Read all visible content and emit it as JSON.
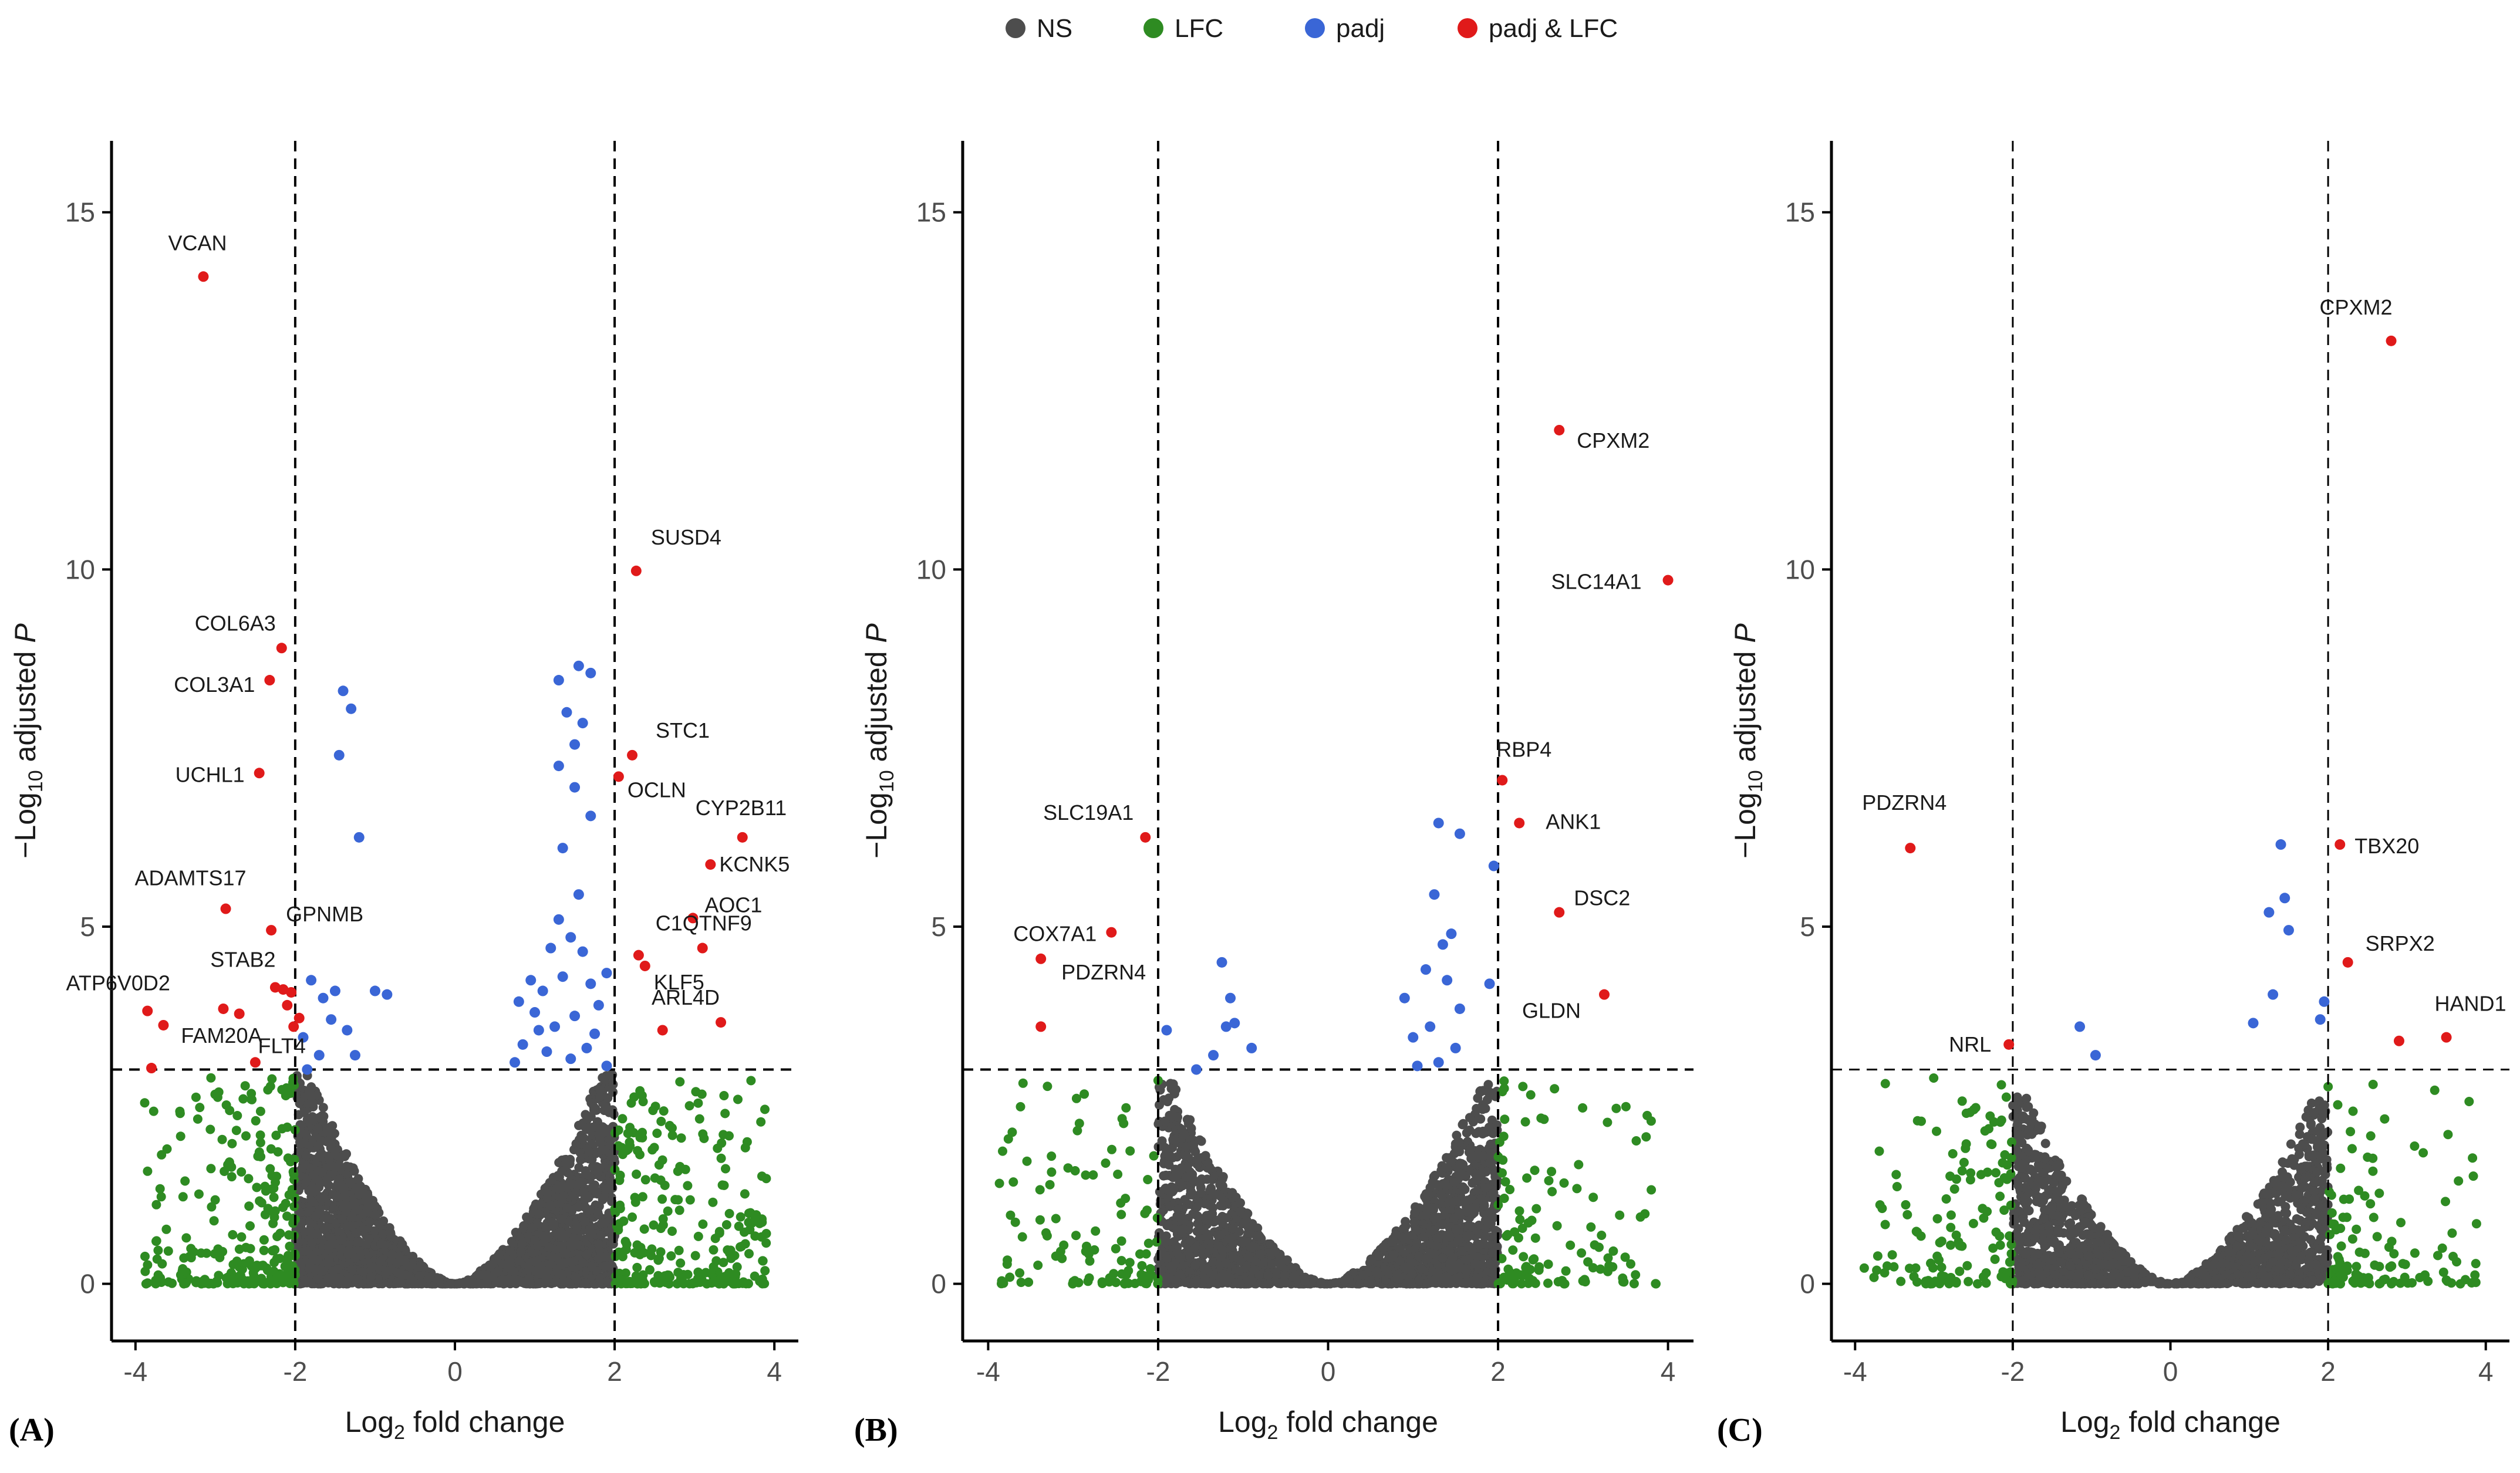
{
  "legend": {
    "items": [
      {
        "label": "NS",
        "color": "#4d4d4d"
      },
      {
        "label": "LFC",
        "color": "#2e8b22"
      },
      {
        "label": "padj",
        "color": "#3a66d6"
      },
      {
        "label": "padj & LFC",
        "color": "#e01a1a"
      }
    ]
  },
  "chart_data": [
    {
      "type": "scatter",
      "panel_label": "(A)",
      "xlabel_base": "Log",
      "xlabel_sub": "2",
      "xlabel_rest": " fold change",
      "ylabel_prefix": "−Log",
      "ylabel_sub": "10",
      "ylabel_mid": " adjusted ",
      "ylabel_p": "P",
      "xlim": [
        -4.3,
        4.3
      ],
      "ylim": [
        -0.8,
        16
      ],
      "xticks": [
        -4,
        -2,
        0,
        2,
        4
      ],
      "yticks": [
        0,
        5,
        10,
        15
      ],
      "fc_cutoff": 2,
      "p_cutoff": 3,
      "labeled_points": [
        {
          "gene": "VCAN",
          "x": -3.15,
          "y": 14.1
        },
        {
          "gene": "SUSD4",
          "x": 2.27,
          "y": 9.98
        },
        {
          "gene": "COL6A3",
          "x": -2.17,
          "y": 8.9
        },
        {
          "gene": "COL3A1",
          "x": -2.32,
          "y": 8.45
        },
        {
          "gene": "UCHL1",
          "x": -2.45,
          "y": 7.15
        },
        {
          "gene": "STC1",
          "x": 2.22,
          "y": 7.4
        },
        {
          "gene": "OCLN",
          "x": 2.05,
          "y": 7.1
        },
        {
          "gene": "CYP2B11",
          "x": 3.6,
          "y": 6.25
        },
        {
          "gene": "KCNK5",
          "x": 3.2,
          "y": 5.87
        },
        {
          "gene": "ADAMTS17",
          "x": -2.87,
          "y": 5.25
        },
        {
          "gene": "GPNMB",
          "x": -2.3,
          "y": 4.95
        },
        {
          "gene": "AOC1",
          "x": 2.98,
          "y": 5.12
        },
        {
          "gene": "C1QTNF9",
          "x": 3.1,
          "y": 4.7
        },
        {
          "gene": "KLF5",
          "x": 2.38,
          "y": 4.45
        },
        {
          "gene": "STAB2",
          "x": -2.25,
          "y": 4.15
        },
        {
          "gene": "ATP6V0D2",
          "x": -3.85,
          "y": 3.82
        },
        {
          "gene": "FAM20A",
          "x": -3.65,
          "y": 3.62
        },
        {
          "gene": "ARL4D",
          "x": 3.33,
          "y": 3.66
        },
        {
          "gene": "FLT4",
          "x": -2.02,
          "y": 3.6
        }
      ],
      "other_red": [
        {
          "x": -2.9,
          "y": 3.85
        },
        {
          "x": -2.7,
          "y": 3.78
        },
        {
          "x": -2.15,
          "y": 4.12
        },
        {
          "x": -2.05,
          "y": 4.08
        },
        {
          "x": -1.95,
          "y": 3.72
        },
        {
          "x": -2.5,
          "y": 3.1
        },
        {
          "x": -3.8,
          "y": 3.02
        },
        {
          "x": 2.3,
          "y": 4.6
        },
        {
          "x": 2.6,
          "y": 3.55
        },
        {
          "x": -2.1,
          "y": 3.9
        }
      ],
      "blue_points": [
        {
          "x": -1.4,
          "y": 8.3
        },
        {
          "x": -1.3,
          "y": 8.05
        },
        {
          "x": -1.45,
          "y": 7.4
        },
        {
          "x": -1.2,
          "y": 6.25
        },
        {
          "x": -1.0,
          "y": 4.1
        },
        {
          "x": -0.85,
          "y": 4.05
        },
        {
          "x": -1.5,
          "y": 4.1
        },
        {
          "x": -1.65,
          "y": 4.0
        },
        {
          "x": -1.8,
          "y": 4.25
        },
        {
          "x": -1.55,
          "y": 3.7
        },
        {
          "x": -1.35,
          "y": 3.55
        },
        {
          "x": -1.7,
          "y": 3.2
        },
        {
          "x": -1.9,
          "y": 3.45
        },
        {
          "x": -1.25,
          "y": 3.2
        },
        {
          "x": -1.85,
          "y": 3.0
        },
        {
          "x": 1.3,
          "y": 8.45
        },
        {
          "x": 1.55,
          "y": 8.65
        },
        {
          "x": 1.7,
          "y": 8.55
        },
        {
          "x": 1.4,
          "y": 8.0
        },
        {
          "x": 1.6,
          "y": 7.85
        },
        {
          "x": 1.5,
          "y": 7.55
        },
        {
          "x": 1.3,
          "y": 7.25
        },
        {
          "x": 1.5,
          "y": 6.95
        },
        {
          "x": 1.7,
          "y": 6.55
        },
        {
          "x": 1.35,
          "y": 6.1
        },
        {
          "x": 1.55,
          "y": 5.45
        },
        {
          "x": 1.3,
          "y": 5.1
        },
        {
          "x": 1.45,
          "y": 4.85
        },
        {
          "x": 1.2,
          "y": 4.7
        },
        {
          "x": 1.6,
          "y": 4.65
        },
        {
          "x": 0.95,
          "y": 4.25
        },
        {
          "x": 1.1,
          "y": 4.1
        },
        {
          "x": 1.35,
          "y": 4.3
        },
        {
          "x": 1.7,
          "y": 4.2
        },
        {
          "x": 1.9,
          "y": 4.35
        },
        {
          "x": 0.8,
          "y": 3.95
        },
        {
          "x": 1.0,
          "y": 3.8
        },
        {
          "x": 1.25,
          "y": 3.6
        },
        {
          "x": 1.5,
          "y": 3.75
        },
        {
          "x": 1.75,
          "y": 3.5
        },
        {
          "x": 0.85,
          "y": 3.35
        },
        {
          "x": 1.15,
          "y": 3.25
        },
        {
          "x": 1.45,
          "y": 3.15
        },
        {
          "x": 1.65,
          "y": 3.3
        },
        {
          "x": 1.9,
          "y": 3.05
        },
        {
          "x": 0.75,
          "y": 3.1
        },
        {
          "x": 1.05,
          "y": 3.55
        },
        {
          "x": 1.8,
          "y": 3.9
        }
      ]
    },
    {
      "type": "scatter",
      "panel_label": "(B)",
      "xlabel_base": "Log",
      "xlabel_sub": "2",
      "xlabel_rest": " fold change",
      "ylabel_prefix": "−Log",
      "ylabel_sub": "10",
      "ylabel_mid": " adjusted ",
      "ylabel_p": "P",
      "xlim": [
        -4.3,
        4.3
      ],
      "ylim": [
        -0.8,
        16
      ],
      "xticks": [
        -4,
        -2,
        0,
        2,
        4
      ],
      "yticks": [
        0,
        5,
        10,
        15
      ],
      "fc_cutoff": 2,
      "p_cutoff": 3,
      "labeled_points": [
        {
          "gene": "CPXM2",
          "x": 2.72,
          "y": 11.95
        },
        {
          "gene": "SLC14A1",
          "x": 4.0,
          "y": 9.85
        },
        {
          "gene": "RBP4",
          "x": 2.05,
          "y": 7.05
        },
        {
          "gene": "ANK1",
          "x": 2.25,
          "y": 6.45
        },
        {
          "gene": "SLC19A1",
          "x": -2.15,
          "y": 6.25
        },
        {
          "gene": "DSC2",
          "x": 2.72,
          "y": 5.2
        },
        {
          "gene": "COX7A1",
          "x": -2.55,
          "y": 4.92
        },
        {
          "gene": "PDZRN4",
          "x": -3.38,
          "y": 4.55
        },
        {
          "gene": "GLDN",
          "x": 3.25,
          "y": 4.05
        }
      ],
      "other_red": [
        {
          "x": -3.38,
          "y": 3.6
        }
      ],
      "blue_points": [
        {
          "x": -1.25,
          "y": 4.5
        },
        {
          "x": -1.15,
          "y": 4.0
        },
        {
          "x": -1.1,
          "y": 3.65
        },
        {
          "x": -1.2,
          "y": 3.6
        },
        {
          "x": -0.9,
          "y": 3.3
        },
        {
          "x": -1.35,
          "y": 3.2
        },
        {
          "x": -1.9,
          "y": 3.55
        },
        {
          "x": -1.55,
          "y": 3.0
        },
        {
          "x": 1.3,
          "y": 6.45
        },
        {
          "x": 1.55,
          "y": 6.3
        },
        {
          "x": 1.95,
          "y": 5.85
        },
        {
          "x": 1.25,
          "y": 5.45
        },
        {
          "x": 1.45,
          "y": 4.9
        },
        {
          "x": 1.35,
          "y": 4.75
        },
        {
          "x": 1.15,
          "y": 4.4
        },
        {
          "x": 1.4,
          "y": 4.25
        },
        {
          "x": 1.9,
          "y": 4.2
        },
        {
          "x": 0.9,
          "y": 4.0
        },
        {
          "x": 1.55,
          "y": 3.85
        },
        {
          "x": 1.2,
          "y": 3.6
        },
        {
          "x": 1.0,
          "y": 3.45
        },
        {
          "x": 1.5,
          "y": 3.3
        },
        {
          "x": 1.3,
          "y": 3.1
        },
        {
          "x": 1.05,
          "y": 3.05
        }
      ]
    },
    {
      "type": "scatter",
      "panel_label": "(C)",
      "xlabel_base": "Log",
      "xlabel_sub": "2",
      "xlabel_rest": " fold change",
      "ylabel_prefix": "−Log",
      "ylabel_sub": "10",
      "ylabel_mid": " adjusted ",
      "ylabel_p": "P",
      "xlim": [
        -4.3,
        4.3
      ],
      "ylim": [
        -0.8,
        16
      ],
      "xticks": [
        -4,
        -2,
        0,
        2,
        4
      ],
      "yticks": [
        0,
        5,
        10,
        15
      ],
      "fc_cutoff": 2,
      "p_cutoff": 3,
      "labeled_points": [
        {
          "gene": "CPXM2",
          "x": 2.8,
          "y": 13.2
        },
        {
          "gene": "PDZRN4",
          "x": -3.3,
          "y": 6.1
        },
        {
          "gene": "TBX20",
          "x": 2.15,
          "y": 6.15
        },
        {
          "gene": "SRPX2",
          "x": 2.25,
          "y": 4.5
        },
        {
          "gene": "HAND1",
          "x": 3.5,
          "y": 3.45
        },
        {
          "gene": "NRL",
          "x": -2.05,
          "y": 3.35
        }
      ],
      "other_red": [
        {
          "x": 2.9,
          "y": 3.4
        }
      ],
      "blue_points": [
        {
          "x": 1.4,
          "y": 6.15
        },
        {
          "x": 1.45,
          "y": 5.4
        },
        {
          "x": 1.25,
          "y": 5.2
        },
        {
          "x": 1.5,
          "y": 4.95
        },
        {
          "x": 1.3,
          "y": 4.05
        },
        {
          "x": 1.95,
          "y": 3.95
        },
        {
          "x": 1.05,
          "y": 3.65
        },
        {
          "x": 1.9,
          "y": 3.7
        },
        {
          "x": -1.15,
          "y": 3.6
        },
        {
          "x": -0.95,
          "y": 3.2
        }
      ]
    }
  ]
}
